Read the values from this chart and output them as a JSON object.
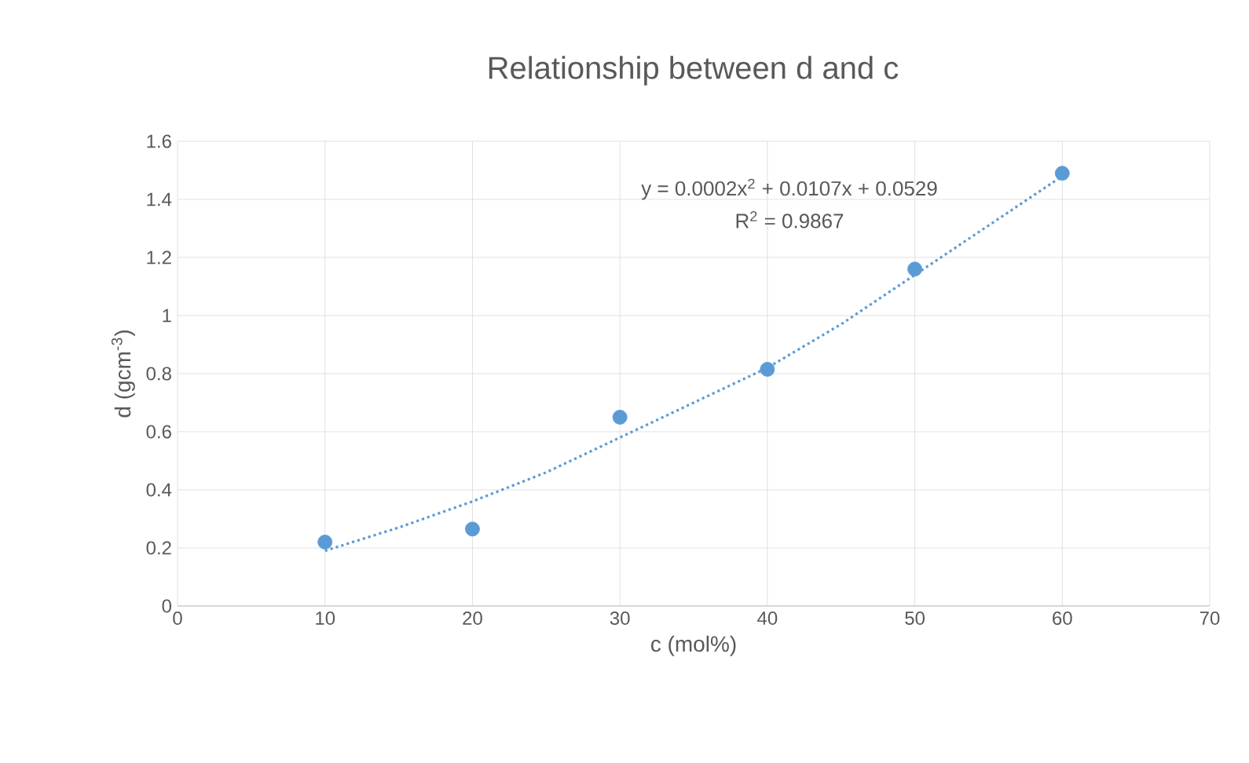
{
  "chart_data": {
    "type": "scatter",
    "title": "Relationship between d and c",
    "xlabel": "c (mol%)",
    "ylabel": "d (gcm$^{-3}$)",
    "annotations": [
      "y = 0.0002x$^{2}$ + 0.0107x + 0.0529",
      "R$^{2}$ = 0.9867"
    ],
    "xlim": [
      0,
      70
    ],
    "ylim": [
      0,
      1.6
    ],
    "xticks": [
      0,
      10,
      20,
      30,
      40,
      50,
      60,
      70
    ],
    "yticks": [
      0,
      0.2,
      0.4,
      0.6,
      0.8,
      1,
      1.2,
      1.4,
      1.6
    ],
    "grid": true,
    "series": [
      {
        "color": "#5b9bd5",
        "marker": "circle",
        "x": [
          10,
          20,
          30,
          40,
          50,
          60
        ],
        "values": [
          0.22,
          0.265,
          0.65,
          0.815,
          1.16,
          1.49
        ]
      },
      {
        "type": "line",
        "color": "#5b9bd5",
        "line_style": "dotted",
        "marker": "none",
        "x": [
          10,
          15,
          20,
          25,
          30,
          35,
          40,
          45,
          50,
          55,
          60
        ],
        "values": [
          0.19,
          0.27,
          0.36,
          0.46,
          0.58,
          0.7,
          0.82,
          0.97,
          1.14,
          1.31,
          1.48
        ]
      }
    ]
  }
}
